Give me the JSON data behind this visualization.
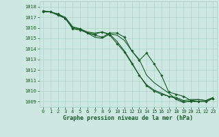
{
  "xlabel": "Graphe pression niveau de la mer (hPa)",
  "ylim": [
    1008.5,
    1018.5
  ],
  "xlim": [
    -0.5,
    23.5
  ],
  "yticks": [
    1009,
    1010,
    1011,
    1012,
    1013,
    1014,
    1015,
    1016,
    1017,
    1018
  ],
  "xticks": [
    0,
    1,
    2,
    3,
    4,
    5,
    6,
    7,
    8,
    9,
    10,
    11,
    12,
    13,
    14,
    15,
    16,
    17,
    18,
    19,
    20,
    21,
    22,
    23
  ],
  "bg_color": "#cce8e0",
  "grid_color": "#a8cfc0",
  "line_color": "#1a5c2a",
  "series": [
    [
      1017.5,
      1017.5,
      1017.3,
      1016.9,
      1015.9,
      1015.8,
      1015.5,
      1015.3,
      1015.1,
      1015.5,
      1015.5,
      1015.1,
      1013.8,
      1012.9,
      1013.6,
      1012.6,
      1011.5,
      1009.9,
      1009.7,
      1009.5,
      1009.1,
      1009.0,
      1009.0,
      1009.3
    ],
    [
      1017.5,
      1017.5,
      1017.2,
      1016.9,
      1015.9,
      1015.8,
      1015.5,
      1015.1,
      1015.0,
      1015.4,
      1015.3,
      1014.8,
      1013.8,
      1013.0,
      1011.5,
      1010.8,
      1010.3,
      1009.8,
      1009.2,
      1008.9,
      1009.1,
      1009.2,
      1009.1,
      1009.3
    ],
    [
      1017.6,
      1017.5,
      1017.2,
      1016.9,
      1016.0,
      1015.9,
      1015.5,
      1015.4,
      1015.6,
      1015.3,
      1014.5,
      1013.7,
      1012.6,
      1011.5,
      1010.5,
      1010.0,
      1009.7,
      1009.5,
      1009.3,
      1009.0,
      1009.0,
      1009.0,
      1009.0,
      1009.3
    ],
    [
      1017.6,
      1017.5,
      1017.3,
      1017.0,
      1016.1,
      1015.9,
      1015.6,
      1015.5,
      1015.6,
      1015.4,
      1014.7,
      1013.8,
      1012.7,
      1011.5,
      1010.6,
      1010.1,
      1009.8,
      1009.5,
      1009.4,
      1009.1,
      1009.2,
      1009.2,
      1009.1,
      1009.4
    ]
  ],
  "marker_series": [
    0,
    2
  ],
  "figsize": [
    3.2,
    2.0
  ],
  "dpi": 100
}
